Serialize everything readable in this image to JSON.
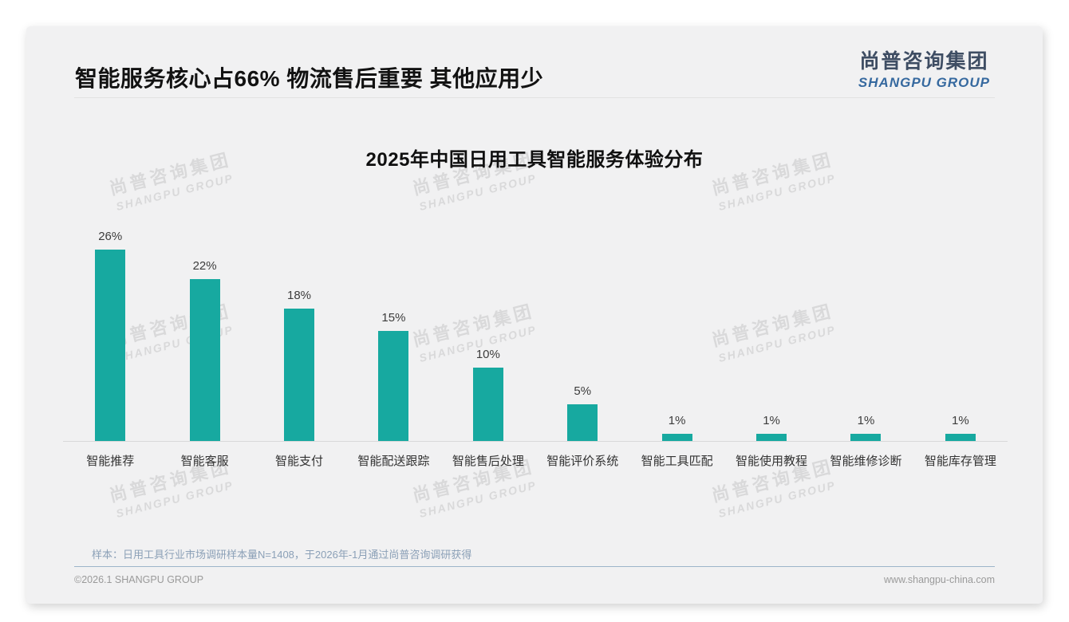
{
  "page": {
    "title": "智能服务核心占66% 物流售后重要 其他应用少",
    "logo": {
      "cn": "尚普咨询集团",
      "en": "SHANGPU GROUP"
    },
    "watermark": {
      "cn": "尚普咨询集团",
      "en": "SHANGPU GROUP"
    },
    "footer": {
      "note": "样本：日用工具行业市场调研样本量N=1408，于2026年-1月通过尚普咨询调研获得",
      "copyright": "©2026.1 SHANGPU GROUP",
      "website": "www.shangpu-china.com"
    }
  },
  "colors": {
    "bar": "#17a9a0",
    "card_background": "#f1f1f2",
    "logo_cn": "#3e4d63",
    "logo_en": "#36699f",
    "note_text": "#8ba0b7",
    "footer_divider": "#9db5ca"
  },
  "chart_data": {
    "type": "bar",
    "title": "2025年中国日用工具智能服务体验分布",
    "categories": [
      "智能推荐",
      "智能客服",
      "智能支付",
      "智能配送跟踪",
      "智能售后处理",
      "智能评价系统",
      "智能工具匹配",
      "智能使用教程",
      "智能维修诊断",
      "智能库存管理"
    ],
    "values": [
      26,
      22,
      18,
      15,
      10,
      5,
      1,
      1,
      1,
      1
    ],
    "value_labels": [
      "26%",
      "22%",
      "18%",
      "15%",
      "10%",
      "5%",
      "1%",
      "1%",
      "1%",
      "1%"
    ],
    "unit": "%",
    "xlabel": "",
    "ylabel": "",
    "ylim": [
      0,
      28
    ],
    "grid": false,
    "legend": false,
    "bar_color": "#17a9a0"
  }
}
